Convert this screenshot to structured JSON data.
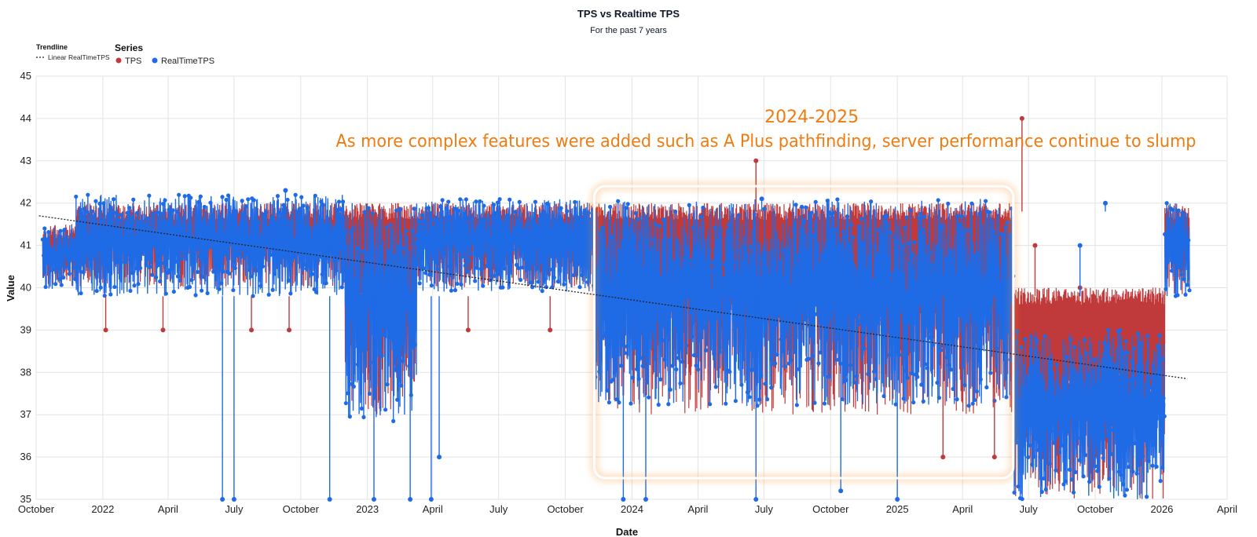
{
  "colors": {
    "tps": "#c0393b",
    "realtime": "#1f6be6",
    "trend": "#222222",
    "annotation": "#f07b10",
    "grid": "#e3e3e3"
  },
  "chart_data": {
    "type": "line",
    "title": "TPS vs Realtime TPS",
    "subtitle": "For the past 7 years",
    "xlabel": "Date",
    "ylabel": "Value",
    "ylim": [
      35,
      45
    ],
    "xlim": [
      "2021-10-01",
      "2026-04-01"
    ],
    "grid": true,
    "legend_placement": "top-left",
    "y_ticks": [
      35,
      36,
      37,
      38,
      39,
      40,
      41,
      42,
      43,
      44,
      45
    ],
    "x_ticks": [
      {
        "date": "2021-10-01",
        "label": "October"
      },
      {
        "date": "2022-01-01",
        "label": "2022"
      },
      {
        "date": "2022-04-01",
        "label": "April"
      },
      {
        "date": "2022-07-01",
        "label": "July"
      },
      {
        "date": "2022-10-01",
        "label": "October"
      },
      {
        "date": "2023-01-01",
        "label": "2023"
      },
      {
        "date": "2023-04-01",
        "label": "April"
      },
      {
        "date": "2023-07-01",
        "label": "July"
      },
      {
        "date": "2023-10-01",
        "label": "October"
      },
      {
        "date": "2024-01-01",
        "label": "2024"
      },
      {
        "date": "2024-04-01",
        "label": "April"
      },
      {
        "date": "2024-07-01",
        "label": "July"
      },
      {
        "date": "2024-10-01",
        "label": "October"
      },
      {
        "date": "2025-01-01",
        "label": "2025"
      },
      {
        "date": "2025-04-01",
        "label": "April"
      },
      {
        "date": "2025-07-01",
        "label": "July"
      },
      {
        "date": "2025-10-01",
        "label": "October"
      },
      {
        "date": "2026-01-01",
        "label": "2026"
      },
      {
        "date": "2026-04-01",
        "label": "April"
      }
    ],
    "legend": {
      "trendline_header": "Trendline",
      "trendline_label": "Linear RealTimeTPS",
      "series_header": "Series",
      "items": [
        "TPS",
        "RealTimeTPS"
      ]
    },
    "trendline": {
      "name": "Linear RealTimeTPS",
      "start": {
        "x": "2021-10-05",
        "y": 41.7
      },
      "end": {
        "x": "2026-02-05",
        "y": 37.85
      }
    },
    "periods": [
      {
        "start": "2021-10-10",
        "end": "2021-11-25",
        "tps_min": 40,
        "tps_max": 41.5,
        "rt_min": 39.9,
        "rt_max": 41.5
      },
      {
        "start": "2021-11-25",
        "end": "2022-12-01",
        "tps_min": 40,
        "tps_max": 42,
        "rt_min": 39.8,
        "rt_max": 42.2
      },
      {
        "start": "2022-12-01",
        "end": "2023-03-10",
        "tps_min": 37,
        "tps_max": 42,
        "rt_min": 36.8,
        "rt_max": 42
      },
      {
        "start": "2023-03-10",
        "end": "2023-11-10",
        "tps_min": 40,
        "tps_max": 42,
        "rt_min": 39.9,
        "rt_max": 42.1
      },
      {
        "start": "2023-11-10",
        "end": "2025-06-10",
        "tps_min": 37,
        "tps_max": 42,
        "rt_min": 37.2,
        "rt_max": 42.1
      },
      {
        "start": "2025-06-10",
        "end": "2026-01-05",
        "tps_min": 35,
        "tps_max": 40,
        "rt_min": 35,
        "rt_max": 39
      },
      {
        "start": "2026-01-05",
        "end": "2026-02-08",
        "tps_min": 39.8,
        "tps_max": 42,
        "rt_min": 39.8,
        "rt_max": 42
      }
    ],
    "spikes": [
      {
        "series": "TPS",
        "x": "2024-06-20",
        "y": 43
      },
      {
        "series": "TPS",
        "x": "2025-06-22",
        "y": 44
      },
      {
        "series": "TPS",
        "x": "2022-01-05",
        "y": 39
      },
      {
        "series": "TPS",
        "x": "2022-03-25",
        "y": 39
      },
      {
        "series": "TPS",
        "x": "2022-07-25",
        "y": 39
      },
      {
        "series": "TPS",
        "x": "2022-09-15",
        "y": 39
      },
      {
        "series": "TPS",
        "x": "2023-05-20",
        "y": 39
      },
      {
        "series": "TPS",
        "x": "2023-09-10",
        "y": 39
      },
      {
        "series": "TPS",
        "x": "2025-05-15",
        "y": 36
      },
      {
        "series": "TPS",
        "x": "2025-03-05",
        "y": 36
      },
      {
        "series": "TPS",
        "x": "2025-07-10",
        "y": 41
      },
      {
        "series": "TPS",
        "x": "2025-09-10",
        "y": 40
      },
      {
        "series": "RealTimeTPS",
        "x": "2022-06-15",
        "y": 35
      },
      {
        "series": "RealTimeTPS",
        "x": "2022-07-01",
        "y": 35
      },
      {
        "series": "RealTimeTPS",
        "x": "2022-11-10",
        "y": 35
      },
      {
        "series": "RealTimeTPS",
        "x": "2023-01-10",
        "y": 35
      },
      {
        "series": "RealTimeTPS",
        "x": "2023-03-01",
        "y": 35
      },
      {
        "series": "RealTimeTPS",
        "x": "2023-03-30",
        "y": 35
      },
      {
        "series": "RealTimeTPS",
        "x": "2023-12-20",
        "y": 35
      },
      {
        "series": "RealTimeTPS",
        "x": "2024-01-20",
        "y": 35
      },
      {
        "series": "RealTimeTPS",
        "x": "2024-06-20",
        "y": 35
      },
      {
        "series": "RealTimeTPS",
        "x": "2024-10-15",
        "y": 35.2
      },
      {
        "series": "RealTimeTPS",
        "x": "2025-01-01",
        "y": 35
      },
      {
        "series": "RealTimeTPS",
        "x": "2025-09-10",
        "y": 41
      },
      {
        "series": "RealTimeTPS",
        "x": "2025-10-15",
        "y": 42
      },
      {
        "series": "RealTimeTPS",
        "x": "2024-06-28",
        "y": 42.1
      },
      {
        "series": "RealTimeTPS",
        "x": "2022-09-10",
        "y": 42.3
      },
      {
        "series": "RealTimeTPS",
        "x": "2023-04-10",
        "y": 36
      }
    ],
    "annotations": [
      {
        "title": "2024-2025",
        "text": "As more complex features were added such as A Plus pathfinding, server performance continue to slump",
        "start": "2023-11-10",
        "end": "2025-06-10",
        "ymin": 35.5,
        "ymax": 42.4
      }
    ]
  }
}
